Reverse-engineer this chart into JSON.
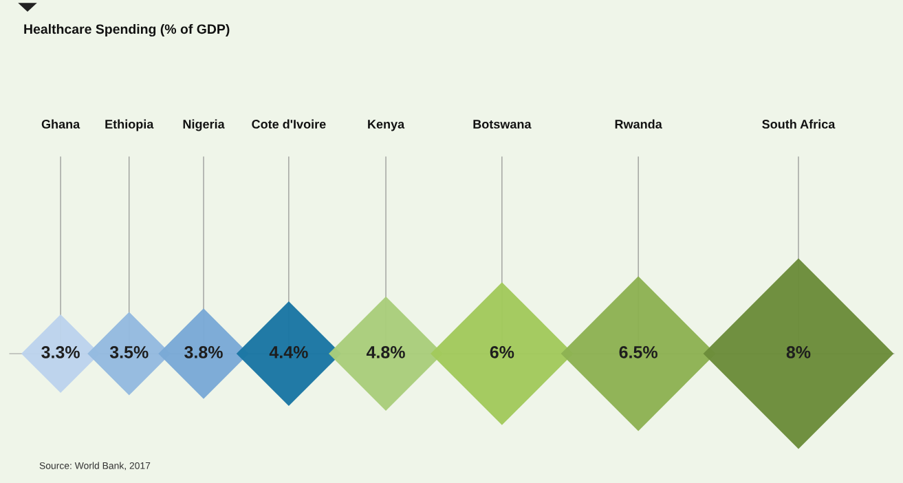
{
  "chart_data": {
    "type": "other",
    "title": "Healthcare Spending (% of GDP)",
    "categories": [
      "Ghana",
      "Ethiopia",
      "Nigeria",
      "Cote d'Ivoire",
      "Kenya",
      "Botswana",
      "Rwanda",
      "South Africa"
    ],
    "values": [
      3.3,
      3.5,
      3.8,
      4.4,
      4.8,
      6,
      6.5,
      8
    ],
    "value_labels": [
      "3.3%",
      "3.5%",
      "3.8%",
      "4.4%",
      "4.8%",
      "6%",
      "6.5%",
      "8%"
    ],
    "colors": [
      "#bcd3ec",
      "#94badf",
      "#7aa9d6",
      "#1a76a3",
      "#a9cd7b",
      "#a2c95c",
      "#8db253",
      "#6b8c3a"
    ],
    "annotations": [
      "Source: World Bank, 2017"
    ]
  }
}
